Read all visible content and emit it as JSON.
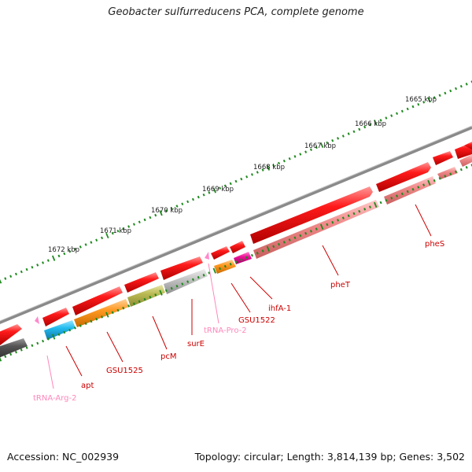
{
  "title": "Geobacter sulfurreducens PCA, complete genome",
  "footer": {
    "accession": "Accession: NC_002939",
    "summary": "Topology: circular; Length: 3,814,139 bp; Genes: 3,502"
  },
  "colors": {
    "backbone": "#808080",
    "tick": "#1f8a1f",
    "cds_red": "#ee0000",
    "cds_pink_light": "#f09090",
    "trna_pink": "#ff88cc",
    "label_red": "#cc0000",
    "label_pink": "#ff88bb",
    "cyan": "#22bbee",
    "orange": "#ff9922",
    "olive": "#bbbb55",
    "silver": "#bbbbbb",
    "magenta": "#ee1199",
    "dark_grey": "#555555"
  },
  "scale_labels": [
    "1665 kbp",
    "1666 kbp",
    "1667 kbp",
    "1668 kbp",
    "1669 kbp",
    "1670 kbp",
    "1671 kbp",
    "1672 kbp"
  ],
  "gene_labels": [
    {
      "name": "pheS",
      "color": "red"
    },
    {
      "name": "pheT",
      "color": "red"
    },
    {
      "name": "ihfA-1",
      "color": "red"
    },
    {
      "name": "GSU1522",
      "color": "red"
    },
    {
      "name": "tRNA-Pro-2",
      "color": "pink"
    },
    {
      "name": "surE",
      "color": "red"
    },
    {
      "name": "pcM",
      "color": "red"
    },
    {
      "name": "GSU1525",
      "color": "red"
    },
    {
      "name": "apt",
      "color": "red"
    },
    {
      "name": "tRNA-Arg-2",
      "color": "pink"
    }
  ]
}
